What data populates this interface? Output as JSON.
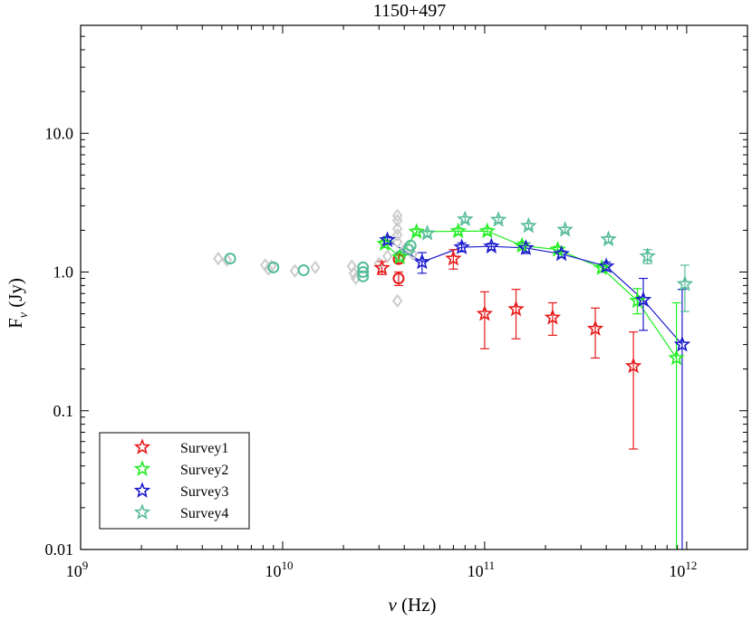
{
  "chart_data": {
    "type": "scatter",
    "title": "1150+497",
    "xlabel": "ν (Hz)",
    "ylabel": "Fν (Jy)",
    "xscale": "log",
    "yscale": "log",
    "xlim": [
      1000000000.0,
      2000000000000.0
    ],
    "ylim": [
      0.01,
      60
    ],
    "x_ticks": [
      {
        "value": 1000000000.0,
        "base": "10",
        "exp": "9"
      },
      {
        "value": 10000000000.0,
        "base": "10",
        "exp": "10"
      },
      {
        "value": 100000000000.0,
        "base": "10",
        "exp": "11"
      },
      {
        "value": 1000000000000.0,
        "base": "10",
        "exp": "12"
      }
    ],
    "y_ticks": [
      {
        "value": 0.01,
        "label": "0.01"
      },
      {
        "value": 0.1,
        "label": "0.1"
      },
      {
        "value": 1,
        "label": "1.0"
      },
      {
        "value": 10,
        "label": "10.0"
      }
    ],
    "legend_position": "bottom-left",
    "series": [
      {
        "name": "Survey1",
        "color": "#e8191a",
        "marker": "star",
        "connected": false,
        "points": [
          {
            "x": 31000000000.0,
            "y": 1.07,
            "lo": 0.96,
            "hi": 1.19
          },
          {
            "x": 70000000000.0,
            "y": 1.25,
            "lo": 1.05,
            "hi": 1.45
          },
          {
            "x": 100000000000.0,
            "y": 0.5,
            "lo": 0.28,
            "hi": 0.72
          },
          {
            "x": 143000000000.0,
            "y": 0.54,
            "lo": 0.33,
            "hi": 0.75
          },
          {
            "x": 217000000000.0,
            "y": 0.47,
            "lo": 0.35,
            "hi": 0.6
          },
          {
            "x": 353000000000.0,
            "y": 0.39,
            "lo": 0.24,
            "hi": 0.55
          },
          {
            "x": 545000000000.0,
            "y": 0.21,
            "lo": 0.053,
            "hi": 0.37
          }
        ]
      },
      {
        "name": "Survey2",
        "color": "#22ee22",
        "marker": "star",
        "connected": true,
        "points": [
          {
            "x": 32000000000.0,
            "y": 1.6,
            "lo": 1.5,
            "hi": 1.7
          },
          {
            "x": 38000000000.0,
            "y": 1.28,
            "lo": 1.2,
            "hi": 1.36
          },
          {
            "x": 46000000000.0,
            "y": 1.95,
            "lo": 1.85,
            "hi": 2.05
          },
          {
            "x": 74000000000.0,
            "y": 1.97,
            "lo": 1.87,
            "hi": 2.07
          },
          {
            "x": 103000000000.0,
            "y": 1.97,
            "lo": 1.87,
            "hi": 2.07
          },
          {
            "x": 153000000000.0,
            "y": 1.55,
            "lo": 1.45,
            "hi": 1.65
          },
          {
            "x": 230000000000.0,
            "y": 1.45,
            "lo": 1.37,
            "hi": 1.53
          },
          {
            "x": 380000000000.0,
            "y": 1.07,
            "lo": 1.01,
            "hi": 1.13
          },
          {
            "x": 570000000000.0,
            "y": 0.62,
            "lo": 0.5,
            "hi": 0.76
          },
          {
            "x": 890000000000.0,
            "y": 0.24,
            "lo": 0.01,
            "hi": 0.6
          }
        ]
      },
      {
        "name": "Survey3",
        "color": "#1a1acc",
        "marker": "star",
        "connected": true,
        "points": [
          {
            "x": 33000000000.0,
            "y": 1.7,
            "lo": 1.6,
            "hi": 1.8
          },
          {
            "x": 49000000000.0,
            "y": 1.18,
            "lo": 0.98,
            "hi": 1.38
          },
          {
            "x": 77000000000.0,
            "y": 1.51,
            "lo": 1.4,
            "hi": 1.62
          },
          {
            "x": 108000000000.0,
            "y": 1.53,
            "lo": 1.45,
            "hi": 1.61
          },
          {
            "x": 160000000000.0,
            "y": 1.49,
            "lo": 1.36,
            "hi": 1.62
          },
          {
            "x": 240000000000.0,
            "y": 1.35,
            "lo": 1.28,
            "hi": 1.42
          },
          {
            "x": 400000000000.0,
            "y": 1.1,
            "lo": 1.02,
            "hi": 1.18
          },
          {
            "x": 610000000000.0,
            "y": 0.63,
            "lo": 0.38,
            "hi": 0.9
          },
          {
            "x": 950000000000.0,
            "y": 0.3,
            "lo": 0.01,
            "hi": 0.75
          }
        ]
      },
      {
        "name": "Survey4",
        "color": "#55bb99",
        "marker": "star",
        "connected": false,
        "points": [
          {
            "x": 52000000000.0,
            "y": 1.9,
            "lo": 1.82,
            "hi": 1.98
          },
          {
            "x": 80000000000.0,
            "y": 2.4,
            "lo": 2.3,
            "hi": 2.5
          },
          {
            "x": 117000000000.0,
            "y": 2.38,
            "lo": 2.28,
            "hi": 2.48
          },
          {
            "x": 165000000000.0,
            "y": 2.15,
            "lo": 2.06,
            "hi": 2.24
          },
          {
            "x": 250000000000.0,
            "y": 2.02,
            "lo": 1.94,
            "hi": 2.1
          },
          {
            "x": 410000000000.0,
            "y": 1.72,
            "lo": 1.64,
            "hi": 1.8
          },
          {
            "x": 640000000000.0,
            "y": 1.3,
            "lo": 1.15,
            "hi": 1.45
          },
          {
            "x": 980000000000.0,
            "y": 0.82,
            "lo": 0.52,
            "hi": 1.12
          }
        ]
      },
      {
        "name": "Teal circles",
        "color": "#55bb99",
        "marker": "circle",
        "in_legend": false,
        "points": [
          {
            "x": 5500000000.0,
            "y": 1.25
          },
          {
            "x": 9000000000.0,
            "y": 1.08
          },
          {
            "x": 12700000000.0,
            "y": 1.03
          },
          {
            "x": 25000000000.0,
            "y": 1.08
          },
          {
            "x": 25000000000.0,
            "y": 1.0
          },
          {
            "x": 25000000000.0,
            "y": 0.93
          },
          {
            "x": 38000000000.0,
            "y": 1.3
          },
          {
            "x": 42000000000.0,
            "y": 1.45
          },
          {
            "x": 43000000000.0,
            "y": 1.55
          }
        ]
      },
      {
        "name": "Red circles",
        "color": "#e8191a",
        "marker": "circle",
        "in_legend": false,
        "points": [
          {
            "x": 37500000000.0,
            "y": 0.9,
            "lo": 0.8,
            "hi": 1.0
          },
          {
            "x": 37500000000.0,
            "y": 1.24,
            "lo": 1.16,
            "hi": 1.32
          }
        ]
      },
      {
        "name": "Grey diamonds",
        "color": "#cccccc",
        "marker": "diamond",
        "in_legend": false,
        "points": [
          {
            "x": 4800000000.0,
            "y": 1.25
          },
          {
            "x": 5300000000.0,
            "y": 1.22
          },
          {
            "x": 8200000000.0,
            "y": 1.12
          },
          {
            "x": 8500000000.0,
            "y": 1.05
          },
          {
            "x": 8800000000.0,
            "y": 1.1
          },
          {
            "x": 11500000000.0,
            "y": 1.02
          },
          {
            "x": 14500000000.0,
            "y": 1.08
          },
          {
            "x": 22000000000.0,
            "y": 1.1
          },
          {
            "x": 22500000000.0,
            "y": 0.98
          },
          {
            "x": 23000000000.0,
            "y": 0.9
          },
          {
            "x": 30000000000.0,
            "y": 1.15
          },
          {
            "x": 33000000000.0,
            "y": 1.3
          },
          {
            "x": 37000000000.0,
            "y": 2.55
          },
          {
            "x": 37000000000.0,
            "y": 2.35
          },
          {
            "x": 37000000000.0,
            "y": 2.05
          },
          {
            "x": 37000000000.0,
            "y": 1.85
          },
          {
            "x": 37000000000.0,
            "y": 1.65
          },
          {
            "x": 37000000000.0,
            "y": 0.62
          },
          {
            "x": 40000000000.0,
            "y": 1.45
          },
          {
            "x": 44000000000.0,
            "y": 1.35
          }
        ]
      }
    ]
  }
}
